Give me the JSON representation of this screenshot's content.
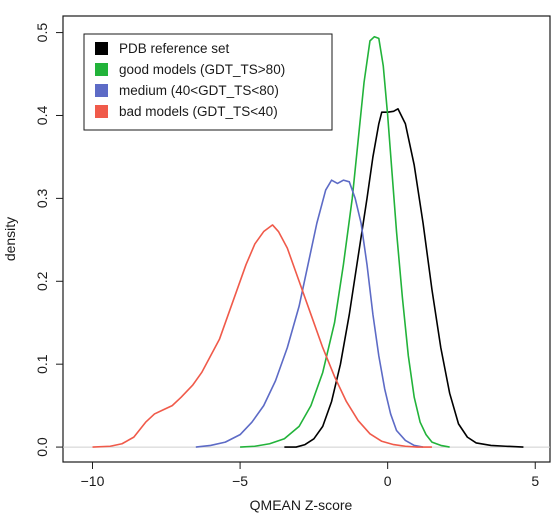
{
  "chart_data": {
    "type": "line",
    "title": "",
    "xlabel": "QMEAN Z-score",
    "ylabel": "density",
    "xlim": [
      -11,
      5.5
    ],
    "ylim": [
      -0.018,
      0.52
    ],
    "xticks": [
      -10,
      -5,
      0,
      5
    ],
    "xtick_labels": [
      "−10",
      "−5",
      "0",
      "5"
    ],
    "yticks": [
      0.0,
      0.1,
      0.2,
      0.3,
      0.4,
      0.5
    ],
    "ytick_labels": [
      "0.0",
      "0.1",
      "0.2",
      "0.3",
      "0.4",
      "0.5"
    ],
    "grid": false,
    "legend_position": "top-left",
    "baseline": 0,
    "series": [
      {
        "name": "PDB reference set",
        "color": "#000000",
        "x": [
          -3.5,
          -3.1,
          -2.8,
          -2.5,
          -2.2,
          -1.9,
          -1.6,
          -1.3,
          -1.0,
          -0.7,
          -0.5,
          -0.3,
          -0.2,
          0.0,
          0.2,
          0.35,
          0.6,
          0.9,
          1.2,
          1.5,
          1.8,
          2.1,
          2.4,
          2.7,
          3.0,
          3.5,
          4.0,
          4.6
        ],
        "y": [
          0.0,
          0.0,
          0.003,
          0.01,
          0.025,
          0.055,
          0.1,
          0.16,
          0.23,
          0.3,
          0.35,
          0.39,
          0.404,
          0.404,
          0.405,
          0.408,
          0.39,
          0.34,
          0.27,
          0.19,
          0.12,
          0.065,
          0.028,
          0.012,
          0.005,
          0.002,
          0.001,
          0.0
        ]
      },
      {
        "name": "good models (GDT_TS>80)",
        "color": "#22b33a",
        "x": [
          -5.0,
          -4.5,
          -4.0,
          -3.5,
          -3.0,
          -2.6,
          -2.2,
          -1.8,
          -1.5,
          -1.2,
          -1.0,
          -0.8,
          -0.6,
          -0.45,
          -0.3,
          -0.15,
          0.0,
          0.15,
          0.3,
          0.5,
          0.7,
          0.9,
          1.1,
          1.3,
          1.5,
          1.8,
          2.1
        ],
        "y": [
          0.0,
          0.001,
          0.004,
          0.01,
          0.025,
          0.05,
          0.09,
          0.15,
          0.22,
          0.3,
          0.37,
          0.44,
          0.49,
          0.495,
          0.493,
          0.46,
          0.4,
          0.33,
          0.26,
          0.18,
          0.11,
          0.06,
          0.03,
          0.015,
          0.006,
          0.002,
          0.0
        ]
      },
      {
        "name": "medium (40<GDT_TS<80)",
        "color": "#5d6bc6",
        "x": [
          -6.5,
          -6.0,
          -5.5,
          -5.0,
          -4.6,
          -4.2,
          -3.8,
          -3.4,
          -3.0,
          -2.7,
          -2.4,
          -2.1,
          -1.9,
          -1.7,
          -1.5,
          -1.3,
          -1.1,
          -0.9,
          -0.7,
          -0.5,
          -0.3,
          -0.1,
          0.1,
          0.3,
          0.6,
          0.9,
          1.2
        ],
        "y": [
          0.0,
          0.002,
          0.006,
          0.015,
          0.03,
          0.05,
          0.08,
          0.12,
          0.17,
          0.22,
          0.27,
          0.31,
          0.322,
          0.318,
          0.322,
          0.32,
          0.3,
          0.27,
          0.22,
          0.16,
          0.11,
          0.07,
          0.04,
          0.02,
          0.008,
          0.002,
          0.0
        ]
      },
      {
        "name": "bad models (GDT_TS<40)",
        "color": "#f05a4a",
        "x": [
          -10.0,
          -9.4,
          -9.0,
          -8.6,
          -8.2,
          -7.9,
          -7.6,
          -7.3,
          -7.0,
          -6.6,
          -6.3,
          -6.0,
          -5.7,
          -5.4,
          -5.1,
          -4.8,
          -4.5,
          -4.2,
          -3.9,
          -3.7,
          -3.4,
          -3.0,
          -2.6,
          -2.2,
          -1.8,
          -1.4,
          -1.0,
          -0.6,
          -0.2,
          0.2,
          0.6,
          1.0,
          1.5
        ],
        "y": [
          0.0,
          0.001,
          0.004,
          0.012,
          0.03,
          0.04,
          0.045,
          0.05,
          0.06,
          0.075,
          0.09,
          0.11,
          0.13,
          0.16,
          0.19,
          0.22,
          0.245,
          0.26,
          0.268,
          0.26,
          0.24,
          0.2,
          0.16,
          0.12,
          0.085,
          0.055,
          0.032,
          0.016,
          0.007,
          0.003,
          0.001,
          0.0,
          0.0
        ]
      }
    ]
  }
}
